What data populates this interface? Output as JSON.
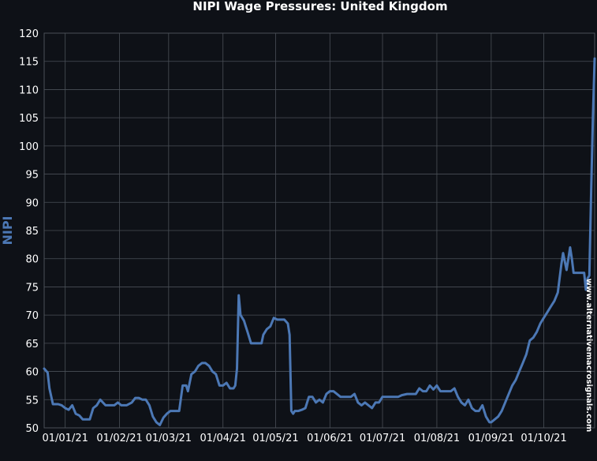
{
  "chart_data": {
    "type": "line",
    "title": "NIPI Wage Pressures: United Kingdom",
    "xlabel": "",
    "ylabel": "NIPI",
    "watermark": "www.alternativemacrosignals.com",
    "x_ticks": [
      "01/01/21",
      "01/02/21",
      "01/03/21",
      "01/04/21",
      "01/05/21",
      "01/06/21",
      "01/07/21",
      "01/08/21",
      "01/09/21",
      "01/10/21"
    ],
    "y_ticks": [
      50,
      55,
      60,
      65,
      70,
      75,
      80,
      85,
      90,
      95,
      100,
      105,
      110,
      115,
      120
    ],
    "ylim": [
      50,
      120
    ],
    "xlim": [
      "2020-12-20",
      "2021-10-30"
    ],
    "grid": true,
    "colors": {
      "background": "#0e1117",
      "line": "#4c78b5",
      "grid": "#4a4f57",
      "text": "#ffffff"
    },
    "series": [
      {
        "name": "",
        "points": [
          [
            "2020-12-20",
            60.5
          ],
          [
            "2020-12-22",
            59.8
          ],
          [
            "2020-12-23",
            57
          ],
          [
            "2020-12-25",
            54.2
          ],
          [
            "2020-12-28",
            54.2
          ],
          [
            "2020-12-30",
            54
          ],
          [
            "2021-01-01",
            53.5
          ],
          [
            "2021-01-03",
            53.2
          ],
          [
            "2021-01-05",
            54
          ],
          [
            "2021-01-07",
            52.5
          ],
          [
            "2021-01-09",
            52.2
          ],
          [
            "2021-01-11",
            51.5
          ],
          [
            "2021-01-13",
            51.5
          ],
          [
            "2021-01-15",
            51.5
          ],
          [
            "2021-01-17",
            53.5
          ],
          [
            "2021-01-19",
            54
          ],
          [
            "2021-01-21",
            55
          ],
          [
            "2021-01-24",
            54
          ],
          [
            "2021-01-27",
            54
          ],
          [
            "2021-01-29",
            54
          ],
          [
            "2021-01-31",
            54.5
          ],
          [
            "2021-02-02",
            54
          ],
          [
            "2021-02-05",
            54
          ],
          [
            "2021-02-08",
            54.5
          ],
          [
            "2021-02-10",
            55.3
          ],
          [
            "2021-02-12",
            55.3
          ],
          [
            "2021-02-14",
            55
          ],
          [
            "2021-02-16",
            55
          ],
          [
            "2021-02-18",
            54
          ],
          [
            "2021-02-20",
            52
          ],
          [
            "2021-02-22",
            51
          ],
          [
            "2021-02-24",
            50.5
          ],
          [
            "2021-02-26",
            51.8
          ],
          [
            "2021-02-28",
            52.5
          ],
          [
            "2021-03-02",
            53
          ],
          [
            "2021-03-05",
            53
          ],
          [
            "2021-03-07",
            53
          ],
          [
            "2021-03-09",
            57.5
          ],
          [
            "2021-03-11",
            57.5
          ],
          [
            "2021-03-12",
            56.5
          ],
          [
            "2021-03-14",
            59.5
          ],
          [
            "2021-03-16",
            60
          ],
          [
            "2021-03-18",
            61
          ],
          [
            "2021-03-20",
            61.5
          ],
          [
            "2021-03-22",
            61.5
          ],
          [
            "2021-03-24",
            61
          ],
          [
            "2021-03-26",
            60
          ],
          [
            "2021-03-28",
            59.5
          ],
          [
            "2021-03-30",
            57.5
          ],
          [
            "2021-04-01",
            57.5
          ],
          [
            "2021-04-03",
            58
          ],
          [
            "2021-04-05",
            57
          ],
          [
            "2021-04-07",
            57
          ],
          [
            "2021-04-08",
            57.5
          ],
          [
            "2021-04-09",
            60.5
          ],
          [
            "2021-04-10",
            73.5
          ],
          [
            "2021-04-11",
            70
          ],
          [
            "2021-04-13",
            69
          ],
          [
            "2021-04-14",
            68
          ],
          [
            "2021-04-15",
            67
          ],
          [
            "2021-04-17",
            65
          ],
          [
            "2021-04-19",
            65
          ],
          [
            "2021-04-21",
            65
          ],
          [
            "2021-04-23",
            65
          ],
          [
            "2021-04-24",
            66.5
          ],
          [
            "2021-04-26",
            67.5
          ],
          [
            "2021-04-28",
            68
          ],
          [
            "2021-04-30",
            69.5
          ],
          [
            "2021-05-02",
            69.2
          ],
          [
            "2021-05-04",
            69.2
          ],
          [
            "2021-05-06",
            69.2
          ],
          [
            "2021-05-08",
            68.5
          ],
          [
            "2021-05-09",
            66.5
          ],
          [
            "2021-05-10",
            53
          ],
          [
            "2021-05-11",
            52.5
          ],
          [
            "2021-05-12",
            53
          ],
          [
            "2021-05-14",
            53
          ],
          [
            "2021-05-16",
            53.2
          ],
          [
            "2021-05-18",
            53.5
          ],
          [
            "2021-05-20",
            55.5
          ],
          [
            "2021-05-22",
            55.5
          ],
          [
            "2021-05-24",
            54.5
          ],
          [
            "2021-05-26",
            55
          ],
          [
            "2021-05-28",
            54.5
          ],
          [
            "2021-05-30",
            56
          ],
          [
            "2021-06-01",
            56.5
          ],
          [
            "2021-06-03",
            56.5
          ],
          [
            "2021-06-05",
            56
          ],
          [
            "2021-06-07",
            55.5
          ],
          [
            "2021-06-09",
            55.5
          ],
          [
            "2021-06-11",
            55.5
          ],
          [
            "2021-06-13",
            55.5
          ],
          [
            "2021-06-15",
            56
          ],
          [
            "2021-06-17",
            54.5
          ],
          [
            "2021-06-19",
            54
          ],
          [
            "2021-06-21",
            54.5
          ],
          [
            "2021-06-23",
            54
          ],
          [
            "2021-06-25",
            53.5
          ],
          [
            "2021-06-27",
            54.5
          ],
          [
            "2021-06-29",
            54.5
          ],
          [
            "2021-07-01",
            55.5
          ],
          [
            "2021-07-04",
            55.5
          ],
          [
            "2021-07-07",
            55.5
          ],
          [
            "2021-07-10",
            55.5
          ],
          [
            "2021-07-12",
            55.8
          ],
          [
            "2021-07-15",
            56
          ],
          [
            "2021-07-18",
            56
          ],
          [
            "2021-07-20",
            56
          ],
          [
            "2021-07-22",
            57
          ],
          [
            "2021-07-24",
            56.5
          ],
          [
            "2021-07-26",
            56.5
          ],
          [
            "2021-07-28",
            57.5
          ],
          [
            "2021-07-30",
            56.8
          ],
          [
            "2021-08-01",
            57.5
          ],
          [
            "2021-08-03",
            56.5
          ],
          [
            "2021-08-05",
            56.5
          ],
          [
            "2021-08-07",
            56.5
          ],
          [
            "2021-08-09",
            56.5
          ],
          [
            "2021-08-11",
            57
          ],
          [
            "2021-08-13",
            55.5
          ],
          [
            "2021-08-15",
            54.5
          ],
          [
            "2021-08-17",
            54
          ],
          [
            "2021-08-19",
            55
          ],
          [
            "2021-08-21",
            53.5
          ],
          [
            "2021-08-23",
            53
          ],
          [
            "2021-08-25",
            53
          ],
          [
            "2021-08-27",
            54
          ],
          [
            "2021-08-29",
            52
          ],
          [
            "2021-08-31",
            51
          ],
          [
            "2021-09-01",
            51
          ],
          [
            "2021-09-03",
            51.5
          ],
          [
            "2021-09-05",
            52
          ],
          [
            "2021-09-07",
            53
          ],
          [
            "2021-09-09",
            54.5
          ],
          [
            "2021-09-11",
            56
          ],
          [
            "2021-09-13",
            57.5
          ],
          [
            "2021-09-15",
            58.5
          ],
          [
            "2021-09-17",
            60
          ],
          [
            "2021-09-19",
            61.5
          ],
          [
            "2021-09-21",
            63
          ],
          [
            "2021-09-23",
            65.5
          ],
          [
            "2021-09-25",
            66
          ],
          [
            "2021-09-27",
            67
          ],
          [
            "2021-09-29",
            68.5
          ],
          [
            "2021-10-01",
            69.5
          ],
          [
            "2021-10-03",
            70.5
          ],
          [
            "2021-10-05",
            71.5
          ],
          [
            "2021-10-07",
            72.5
          ],
          [
            "2021-10-09",
            74
          ],
          [
            "2021-10-11",
            79
          ],
          [
            "2021-10-12",
            81
          ],
          [
            "2021-10-13",
            79.5
          ],
          [
            "2021-10-14",
            78
          ],
          [
            "2021-10-15",
            80
          ],
          [
            "2021-10-16",
            82
          ],
          [
            "2021-10-17",
            80
          ],
          [
            "2021-10-18",
            77.5
          ],
          [
            "2021-10-20",
            77.5
          ],
          [
            "2021-10-22",
            77.5
          ],
          [
            "2021-10-24",
            77.5
          ],
          [
            "2021-10-25",
            74.5
          ],
          [
            "2021-10-26",
            76.5
          ],
          [
            "2021-10-27",
            77
          ],
          [
            "2021-10-28",
            92
          ],
          [
            "2021-10-29",
            105
          ],
          [
            "2021-10-30",
            115.5
          ]
        ]
      }
    ]
  }
}
